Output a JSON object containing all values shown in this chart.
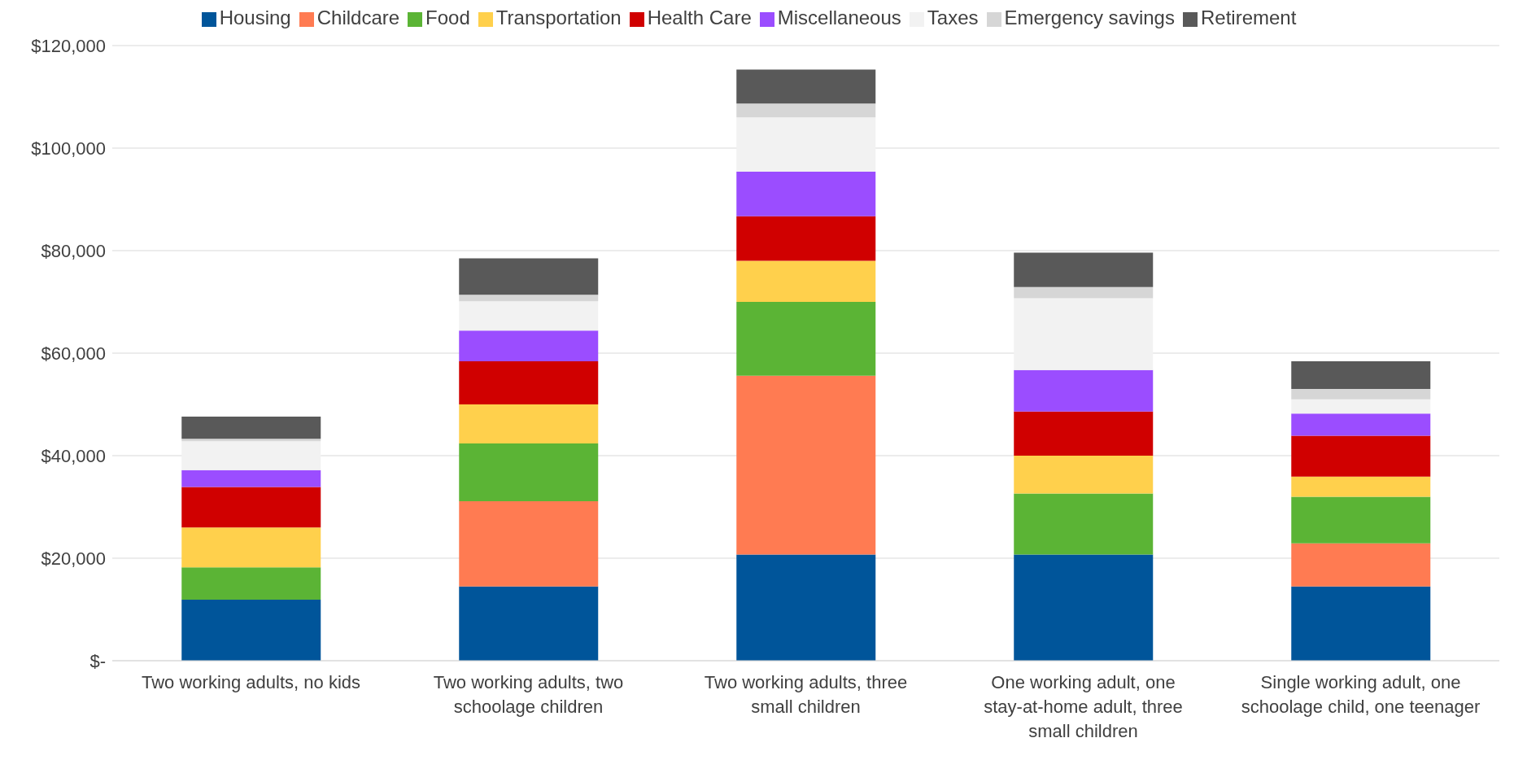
{
  "chart_data": {
    "type": "bar",
    "stacked": true,
    "categories": [
      "Two working adults, no kids",
      "Two working adults, two schoolage children",
      "Two working adults, three small children",
      "One working adult, one stay-at-home adult, three small children",
      "Single working adult, one schoolage child, one teenager"
    ],
    "series": [
      {
        "name": "Housing",
        "color": "#00559a",
        "values": [
          11900,
          14500,
          20700,
          20700,
          14500
        ]
      },
      {
        "name": "Childcare",
        "color": "#ff7b52",
        "values": [
          0,
          16600,
          34900,
          0,
          8400
        ]
      },
      {
        "name": "Food",
        "color": "#5bb435",
        "values": [
          6300,
          11300,
          14400,
          11900,
          9100
        ]
      },
      {
        "name": "Transportation",
        "color": "#ffd04c",
        "values": [
          7800,
          7600,
          8000,
          7400,
          3900
        ]
      },
      {
        "name": "Health Care",
        "color": "#d00000",
        "values": [
          7900,
          8400,
          8700,
          8600,
          8000
        ]
      },
      {
        "name": "Miscellaneous",
        "color": "#9b4dff",
        "values": [
          3300,
          6000,
          8700,
          8100,
          4300
        ]
      },
      {
        "name": "Taxes",
        "color": "#f2f2f2",
        "values": [
          5600,
          5700,
          10600,
          14000,
          2800
        ]
      },
      {
        "name": "Emergency savings",
        "color": "#d6d6d6",
        "values": [
          500,
          1300,
          2700,
          2200,
          2000
        ]
      },
      {
        "name": "Retirement",
        "color": "#595959",
        "values": [
          4300,
          7100,
          6600,
          6700,
          5400
        ]
      }
    ],
    "ylim": [
      0,
      120000
    ],
    "yticks": [
      {
        "value": 0,
        "label": "$-"
      },
      {
        "value": 20000,
        "label": "$20,000"
      },
      {
        "value": 40000,
        "label": "$40,000"
      },
      {
        "value": 60000,
        "label": "$60,000"
      },
      {
        "value": 80000,
        "label": "$80,000"
      },
      {
        "value": 100000,
        "label": "$100,000"
      },
      {
        "value": 120000,
        "label": "$120,000"
      }
    ],
    "grid": "y",
    "legend": "top"
  }
}
